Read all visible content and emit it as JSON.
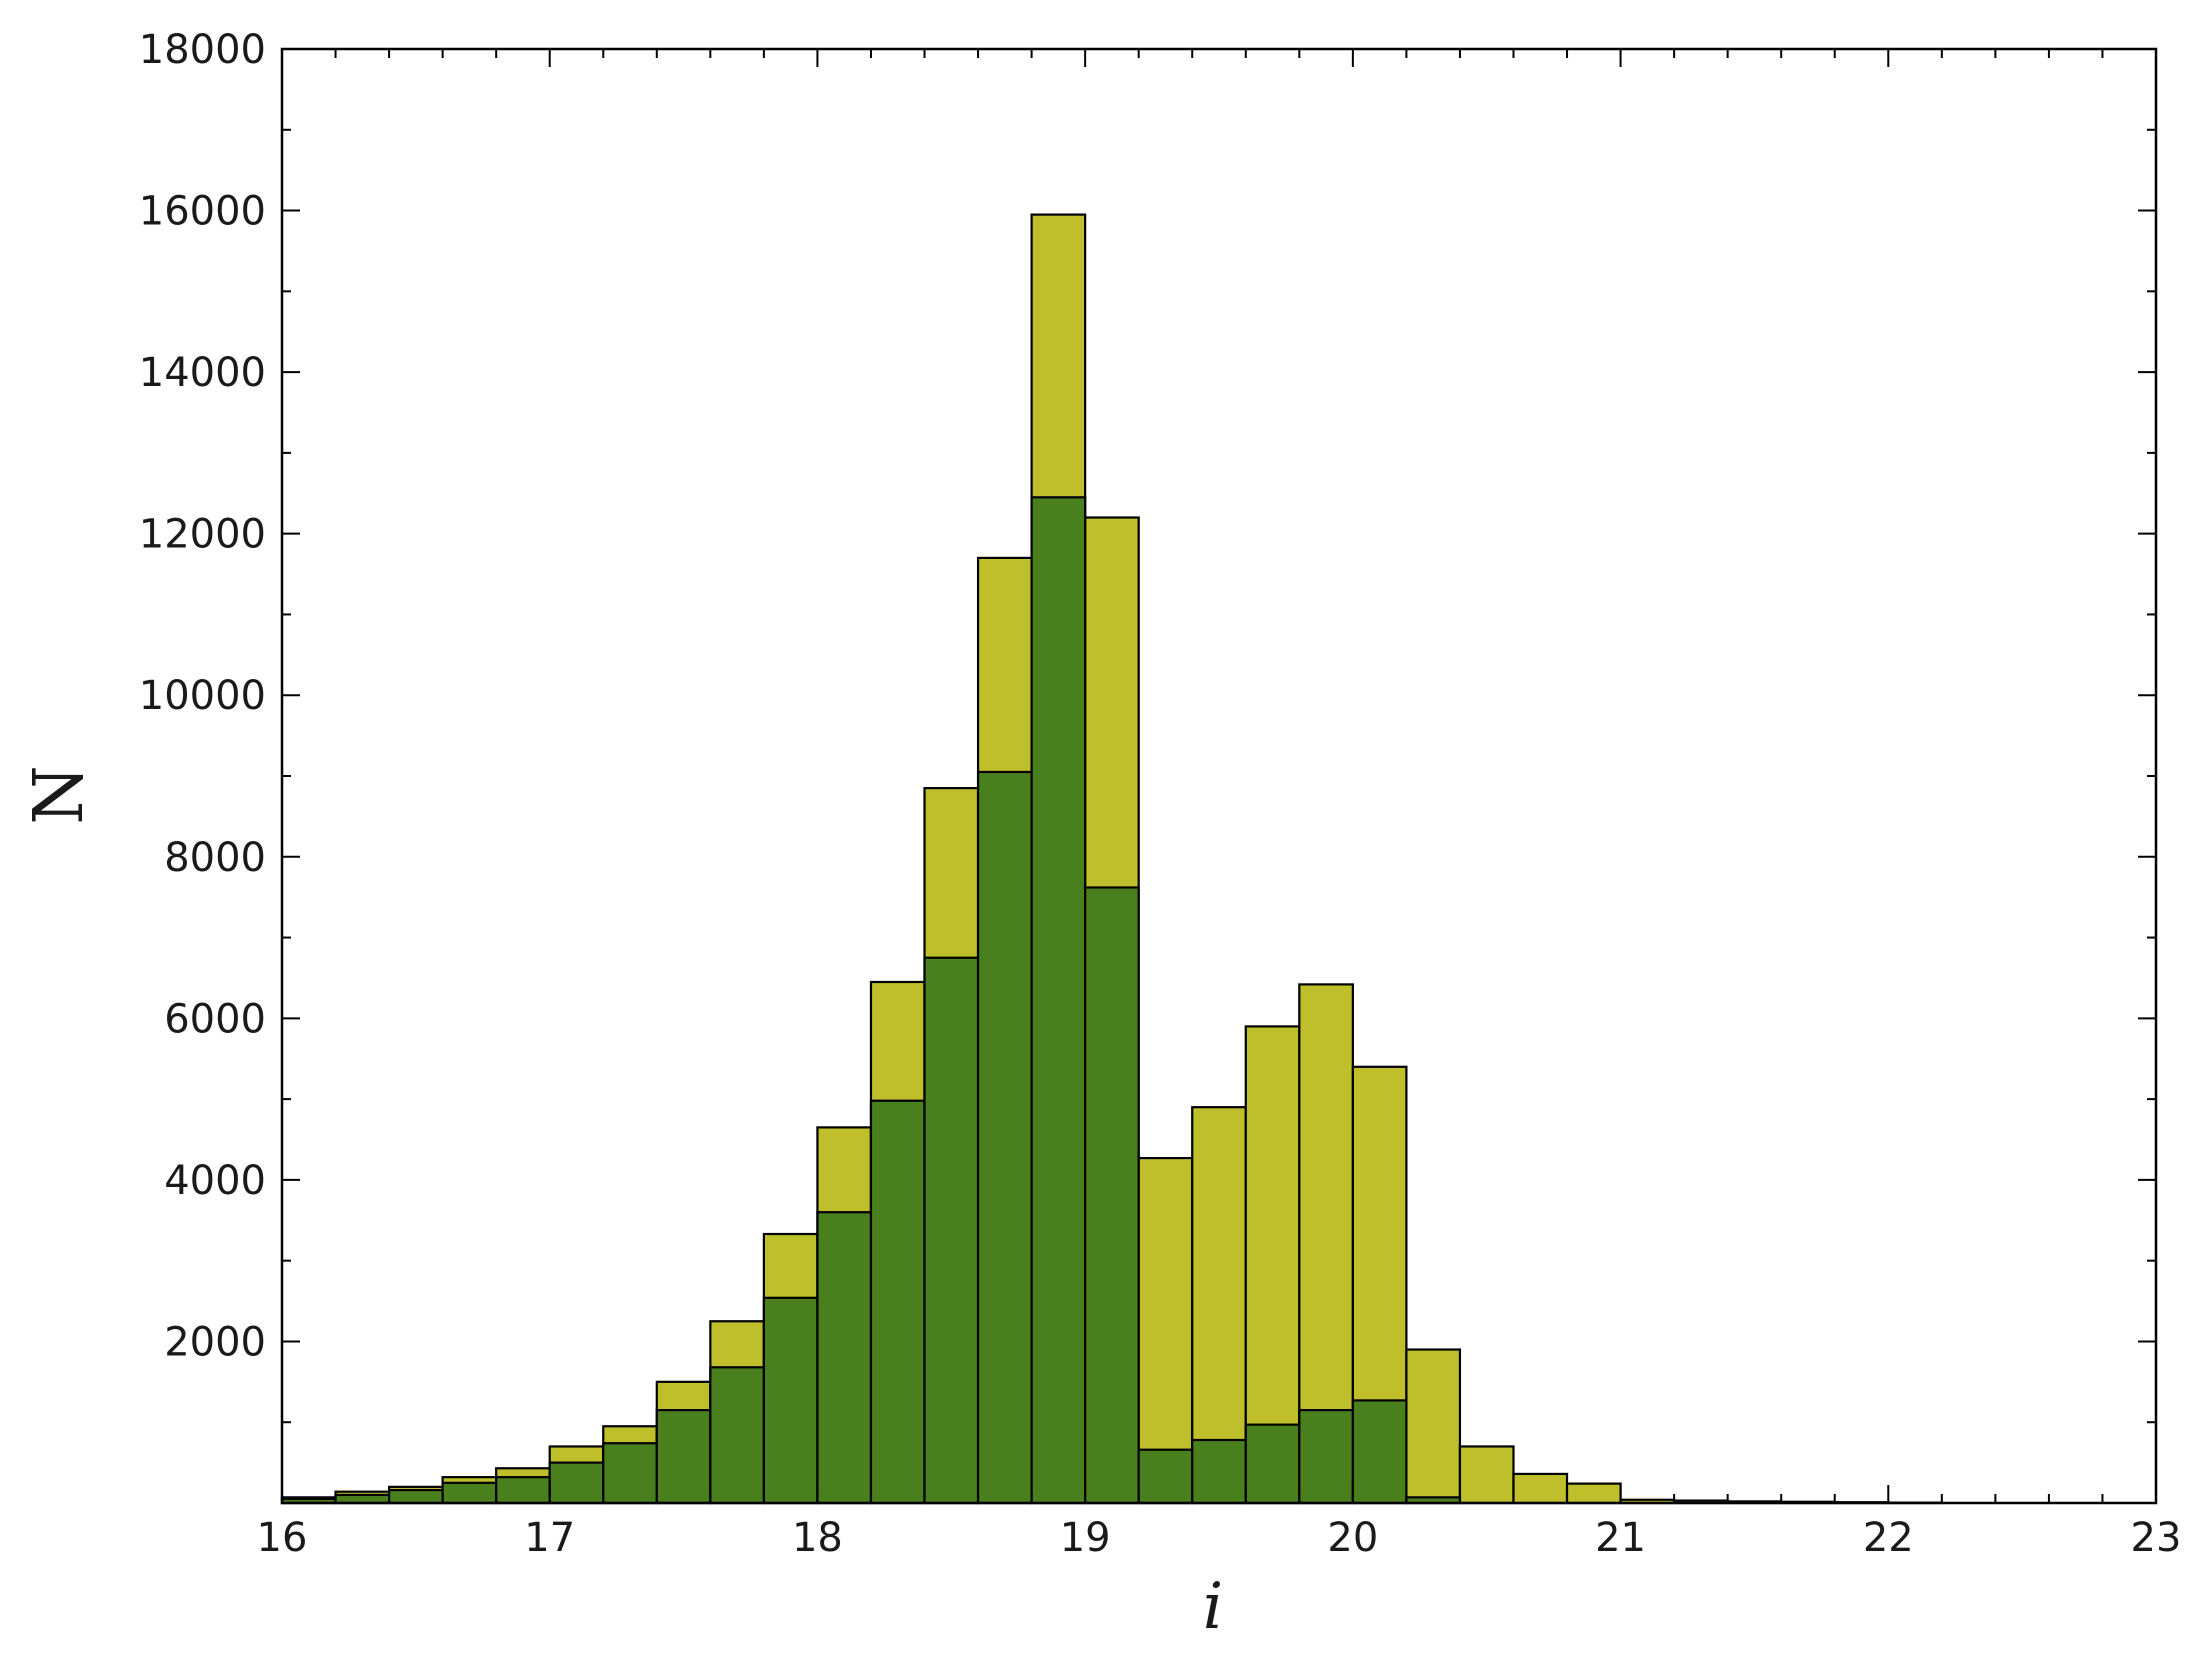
{
  "chart_data": {
    "type": "bar",
    "subtype": "overlaid histogram",
    "title": "",
    "xlabel": "i",
    "ylabel": "N",
    "xlim": [
      16,
      23
    ],
    "ylim": [
      0,
      18000
    ],
    "bin_width": 0.2,
    "bin_starts": [
      16.0,
      16.2,
      16.4,
      16.6,
      16.8,
      17.0,
      17.2,
      17.4,
      17.6,
      17.8,
      18.0,
      18.2,
      18.4,
      18.6,
      18.8,
      19.0,
      19.2,
      19.4,
      19.6,
      19.8,
      20.0,
      20.2,
      20.4,
      20.6,
      20.8,
      21.0,
      21.2,
      21.4,
      21.6,
      21.8,
      22.0
    ],
    "x_ticks": [
      "16",
      "17",
      "18",
      "19",
      "20",
      "21",
      "22",
      "23"
    ],
    "y_ticks": [
      "2000",
      "4000",
      "6000",
      "8000",
      "10000",
      "12000",
      "14000",
      "16000",
      "18000"
    ],
    "grid": false,
    "legend": "none",
    "series": [
      {
        "color": "#bfbf2b",
        "values": [
          70,
          140,
          200,
          320,
          430,
          700,
          950,
          1500,
          2250,
          3330,
          4650,
          6450,
          8850,
          11700,
          15950,
          12200,
          4270,
          4900,
          5900,
          6420,
          5400,
          1900,
          700,
          360,
          240,
          40,
          30,
          20,
          15,
          10,
          5
        ]
      },
      {
        "color": "#4a7f1e",
        "values": [
          50,
          100,
          160,
          250,
          320,
          500,
          740,
          1150,
          1680,
          2540,
          3600,
          4980,
          6750,
          9050,
          12450,
          7620,
          660,
          780,
          970,
          1150,
          1270,
          70,
          0,
          0,
          0,
          0,
          0,
          0,
          0,
          0,
          0
        ]
      }
    ]
  }
}
